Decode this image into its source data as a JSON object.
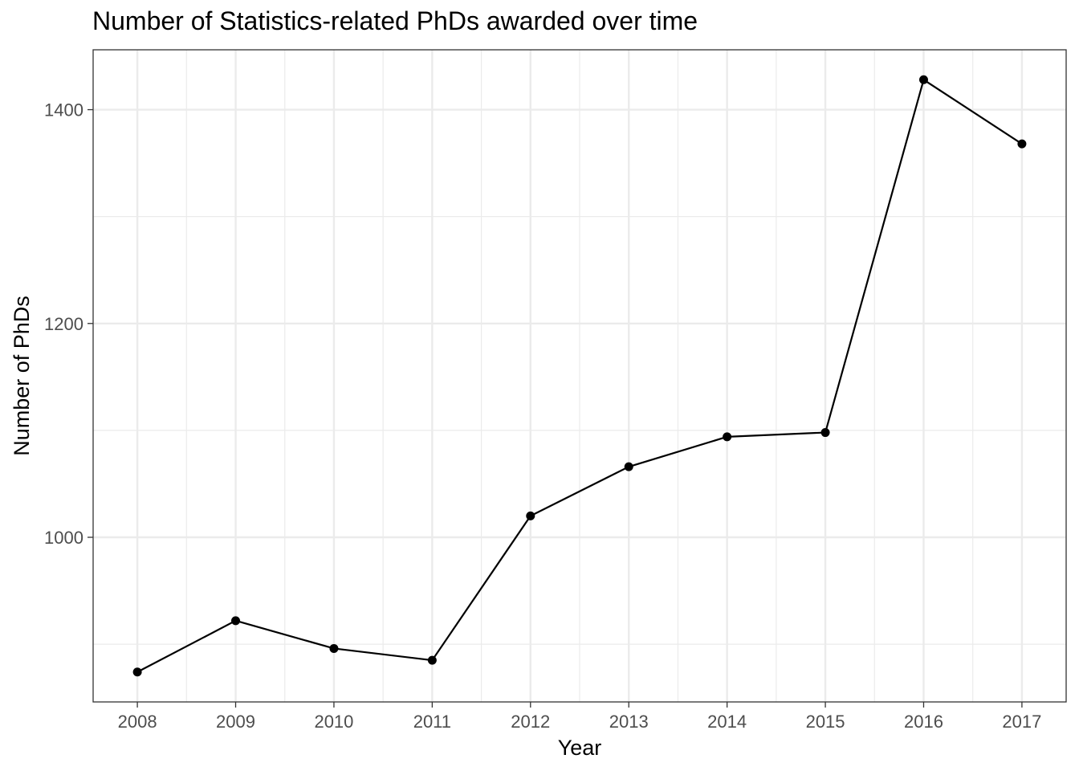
{
  "chart_data": {
    "type": "line",
    "title": "Number of Statistics-related PhDs awarded over time",
    "xlabel": "Year",
    "ylabel": "Number of PhDs",
    "x": [
      2008,
      2009,
      2010,
      2011,
      2012,
      2013,
      2014,
      2015,
      2016,
      2017
    ],
    "series": [
      {
        "values": [
          874,
          922,
          896,
          885,
          1020,
          1066,
          1094,
          1098,
          1428,
          1368
        ]
      }
    ],
    "x_ticks": [
      "2008",
      "2009",
      "2010",
      "2011",
      "2012",
      "2013",
      "2014",
      "2015",
      "2016",
      "2017"
    ],
    "y_ticks": [
      "1000",
      "1200",
      "1400"
    ],
    "xlim": [
      2007.55,
      2017.45
    ],
    "ylim": [
      846,
      1456
    ],
    "grid": true,
    "colors": {
      "line": "#000000",
      "point": "#000000",
      "grid": "#ebebeb",
      "panel_border": "#333333"
    }
  }
}
